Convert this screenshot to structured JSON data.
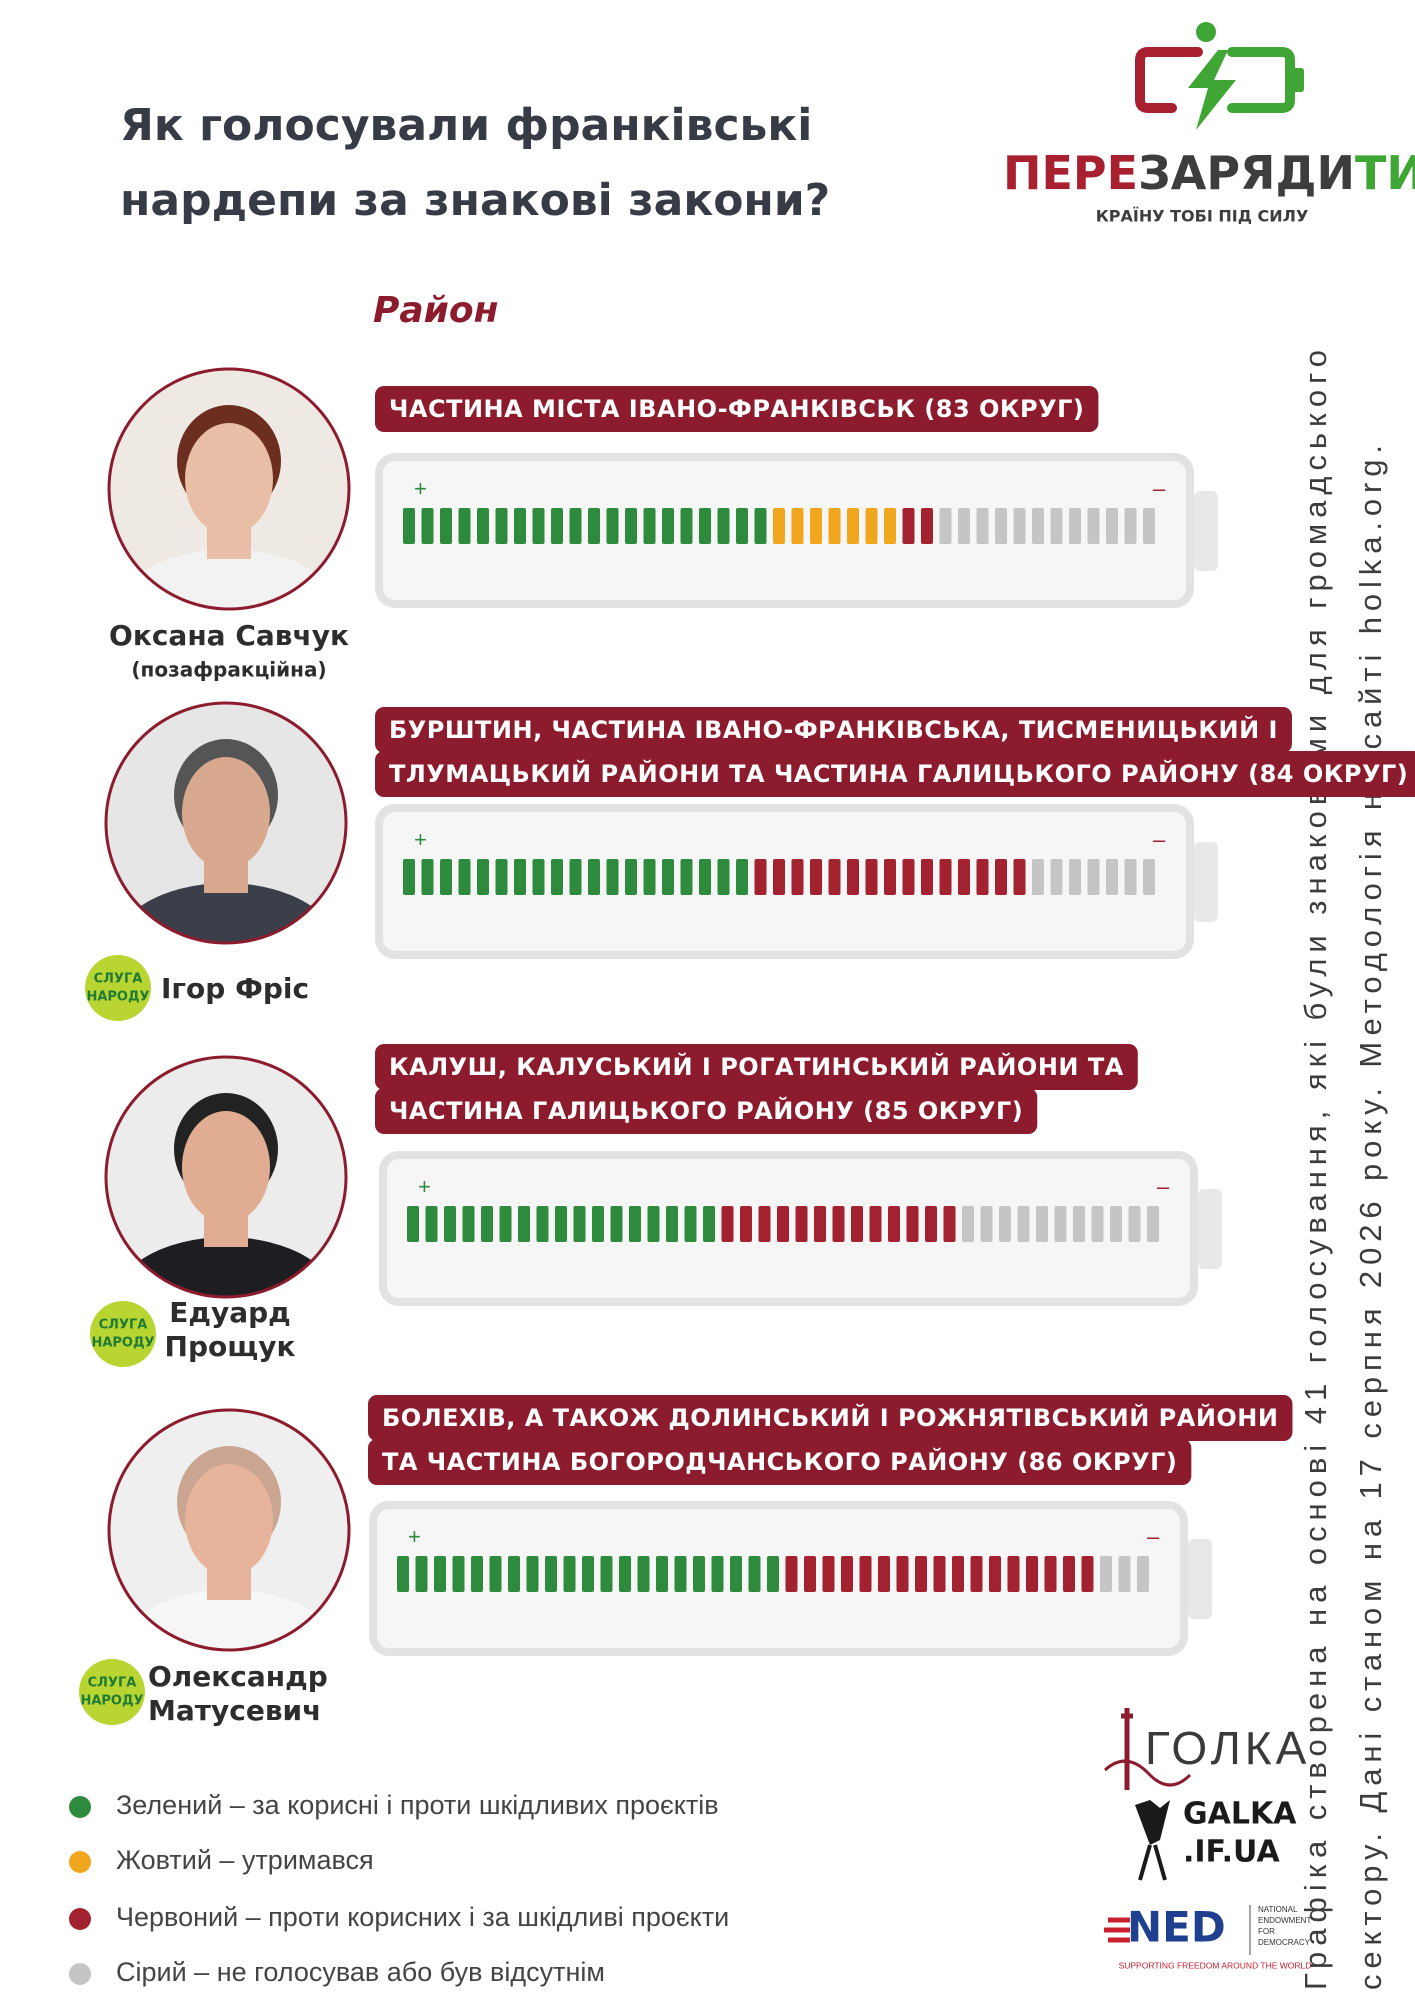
{
  "header": {
    "title": [
      "Як голосували франківські",
      "нардепи за знакові закони?"
    ],
    "logo": {
      "parts": [
        "ПЕРЕ",
        "ЗАРЯДИ",
        "ТИ"
      ],
      "tagline": "КРАЇНУ ТОБІ ПІД СИЛУ"
    }
  },
  "section_label": "Район",
  "battery_labels": {
    "plus": "+",
    "minus": "–"
  },
  "deputies": [
    {
      "name": [
        "Оксана Савчук"
      ],
      "note": "(позафракційна)",
      "district": [
        "ЧАСТИНА МІСТА ІВАНО-ФРАНКІВСЬК (83 ОКРУГ)"
      ],
      "votes": [
        20,
        7,
        2,
        12
      ]
    },
    {
      "name": [
        "Ігор Фріс"
      ],
      "party": [
        "СЛУГА",
        "НАРОДУ"
      ],
      "district": [
        "БУРШТИН, ЧАСТИНА ІВАНО-ФРАНКІВСЬКА, ТИСМЕНИЦЬКИЙ І",
        "ТЛУМАЦЬКИЙ РАЙОНИ ТА ЧАСТИНА ГАЛИЦЬКОГО РАЙОНУ (84 ОКРУГ)"
      ],
      "votes": [
        19,
        0,
        15,
        7
      ]
    },
    {
      "name": [
        "Едуард",
        "Прощук"
      ],
      "party": [
        "СЛУГА",
        "НАРОДУ"
      ],
      "district": [
        "КАЛУШ,  КАЛУСЬКИЙ І РОГАТИНСЬКИЙ РАЙОНИ ТА",
        "ЧАСТИНА ГАЛИЦЬКОГО РАЙОНУ (85 ОКРУГ)"
      ],
      "votes": [
        17,
        0,
        13,
        11
      ]
    },
    {
      "name": [
        "Олександр",
        "Матусевич"
      ],
      "party": [
        "СЛУГА",
        "НАРОДУ"
      ],
      "district": [
        "БОЛЕХІВ, А ТАКОЖ ДОЛИНСЬКИЙ І РОЖНЯТІВСЬКИЙ РАЙОНИ",
        "ТА ЧАСТИНА БОГОРОДЧАНСЬКОГО РАЙОНУ (86 ОКРУГ)"
      ],
      "votes": [
        21,
        0,
        17,
        3
      ]
    }
  ],
  "legend": [
    {
      "label": "Зелений – за корисні і проти шкідливих проєктів",
      "color": "#2e8a3c"
    },
    {
      "label": "Жовтий – утримався",
      "color": "#f0a71e"
    },
    {
      "label": "Червоний – проти корисних і за шкідливі проєкти",
      "color": "#a2232f"
    },
    {
      "label": "Сірий – не голосував або був відсутнім",
      "color": "#c5c5c5"
    }
  ],
  "side_note": [
    "Графіка створена на основі 41 голосування, які були знаковими для громадського",
    "сектору. Дані станом на 17 серпня 2026 року. Методологія на сайті holka.org."
  ],
  "sponsors": {
    "golka": "ГОЛКА",
    "galka": [
      "GALKA",
      ".IF.UA"
    ],
    "ned": {
      "name": "NED",
      "full": [
        "NATIONAL",
        "ENDOWMENT",
        "FOR",
        "DEMOCRACY"
      ],
      "tagline": "SUPPORTING FREEDOM AROUND THE WORLD"
    }
  }
}
